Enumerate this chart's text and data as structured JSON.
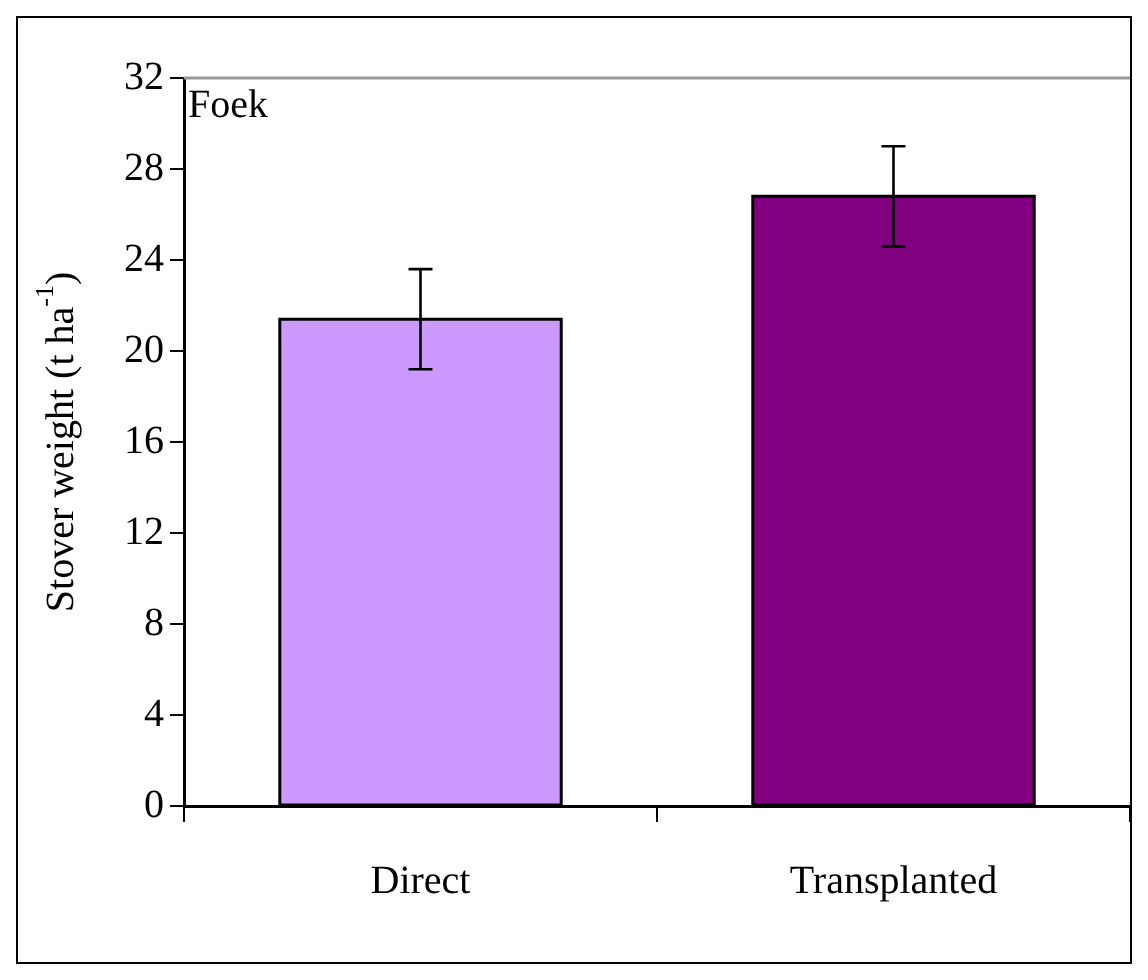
{
  "chart_data": {
    "type": "bar",
    "ylabel": "Stover weight (t ha$^{-1}$)",
    "annotations": [
      "Foek"
    ],
    "categories": [
      "Direct",
      "Transplanted"
    ],
    "series": [
      {
        "values": [
          21.4,
          26.8
        ],
        "colors": [
          "#cc99ff",
          "#800080"
        ],
        "errors": [
          2.2,
          2.2
        ]
      }
    ],
    "ylim": [
      0,
      32
    ],
    "yticks": [
      0,
      4,
      8,
      12,
      16,
      20,
      24,
      28,
      32
    ],
    "grid": false,
    "legend": false
  }
}
